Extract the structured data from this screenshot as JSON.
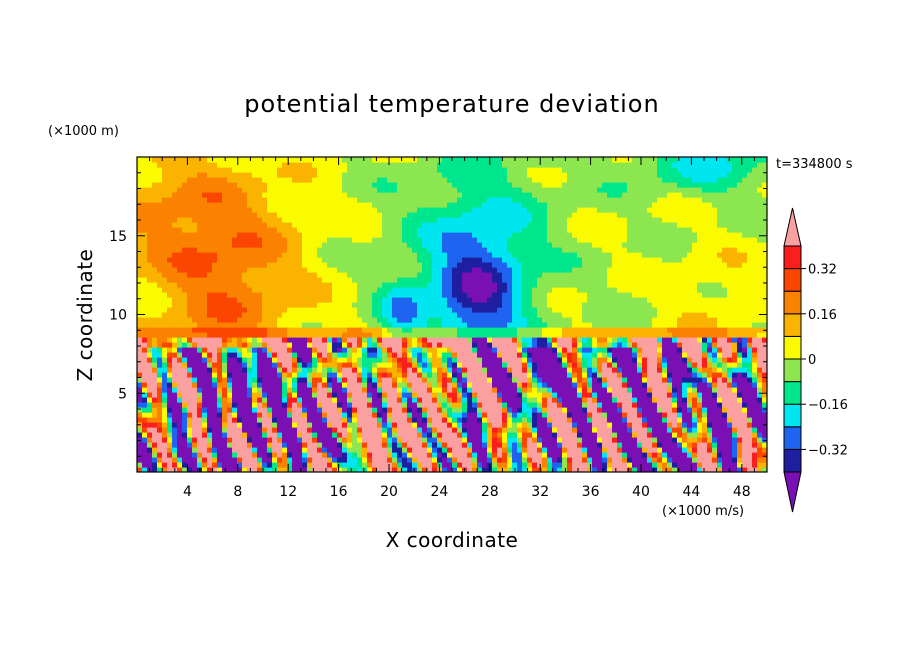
{
  "chart_data": {
    "type": "heatmap",
    "title": "potential temperature deviation",
    "xlabel": "X coordinate",
    "ylabel": "Z coordinate",
    "x_unit": "(×1000 m/s)",
    "y_unit": "(×1000 m)",
    "time_label": "t=334800 s",
    "xlim": [
      0,
      50
    ],
    "ylim": [
      0,
      20
    ],
    "x_ticks": [
      4,
      8,
      12,
      16,
      20,
      24,
      28,
      32,
      36,
      40,
      44,
      48
    ],
    "y_ticks": [
      5,
      10,
      15
    ],
    "colorbar": {
      "levels": [
        -0.48,
        -0.4,
        -0.32,
        -0.24,
        -0.16,
        -0.08,
        0,
        0.08,
        0.16,
        0.24,
        0.32,
        0.4
      ],
      "labels": [
        "0.32",
        "0.16",
        "0",
        "−0.16",
        "−0.32"
      ],
      "label_values": [
        0.32,
        0.16,
        0,
        -0.16,
        -0.32
      ],
      "colors": [
        "#7A10B4",
        "#1E1EA0",
        "#1E64F0",
        "#00E6F0",
        "#00E68C",
        "#8CE650",
        "#FAFA00",
        "#FAB400",
        "#FA8200",
        "#FA4600",
        "#FA1E1E",
        "#FAA0A0"
      ],
      "extend": "both"
    }
  }
}
